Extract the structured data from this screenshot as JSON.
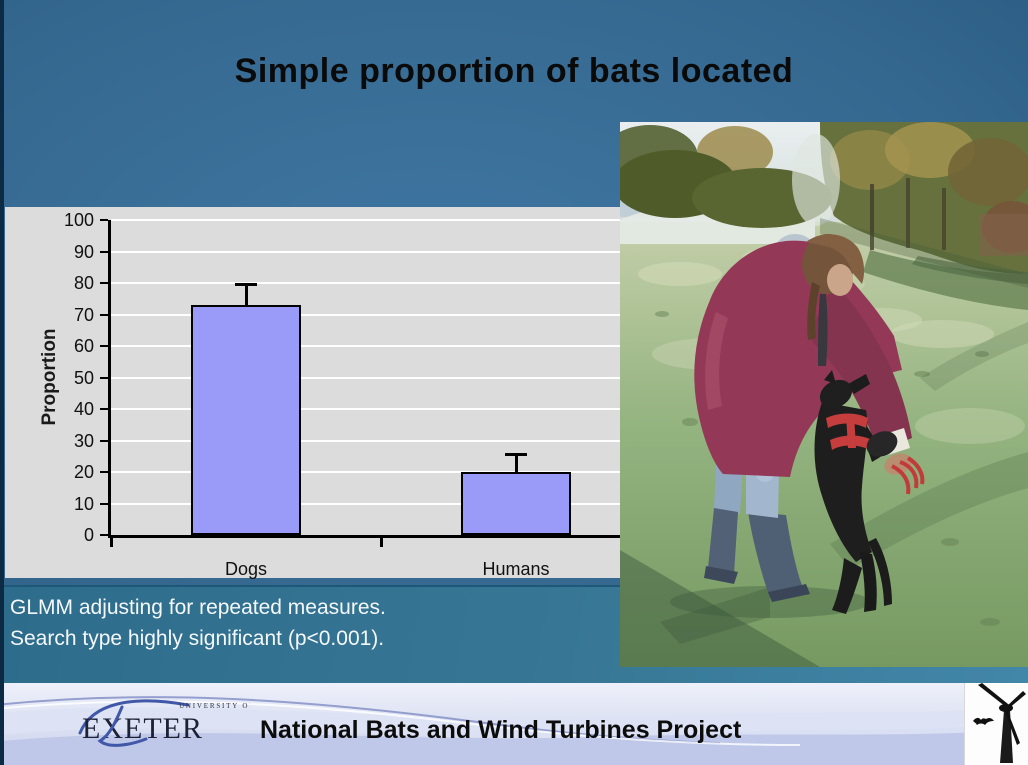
{
  "slide": {
    "title": "Simple proportion of bats located",
    "notes": [
      "GLMM adjusting for repeated measures.",
      "Search type highly significant (p<0.001)."
    ],
    "footer": {
      "logo_top": "UNIVERSITY OF",
      "logo_name": "EXETER",
      "project_title": "National Bats and Wind Turbines Project"
    },
    "photo_alt": "Dog handler in a dark red jacket bending over a black search dog wearing a red harness, in a frosty green field with autumn trees behind"
  },
  "icons": {
    "turbine": "wind-turbine-icon",
    "bat": "bat-icon",
    "logo_swoosh": "exeter-swoosh-icon"
  },
  "chart_data": {
    "type": "bar",
    "categories": [
      "Dogs",
      "Humans"
    ],
    "values": [
      73,
      20
    ],
    "error_upper": [
      6,
      5
    ],
    "title": "",
    "xlabel": "",
    "ylabel": "Proportion",
    "ylim": [
      0,
      100
    ],
    "ytick_step": 10,
    "grid": true,
    "legend": false
  },
  "colors": {
    "bar-fill": "#9a9af8",
    "plot-bg": "#dcdcdc",
    "note-band": "#2e6c8c",
    "slide-bg-light": "#3f77a3",
    "slide-bg-dark": "#1c4a6e",
    "footer-bg": "#ccd3ec",
    "title-color": "#0a0a0a"
  }
}
